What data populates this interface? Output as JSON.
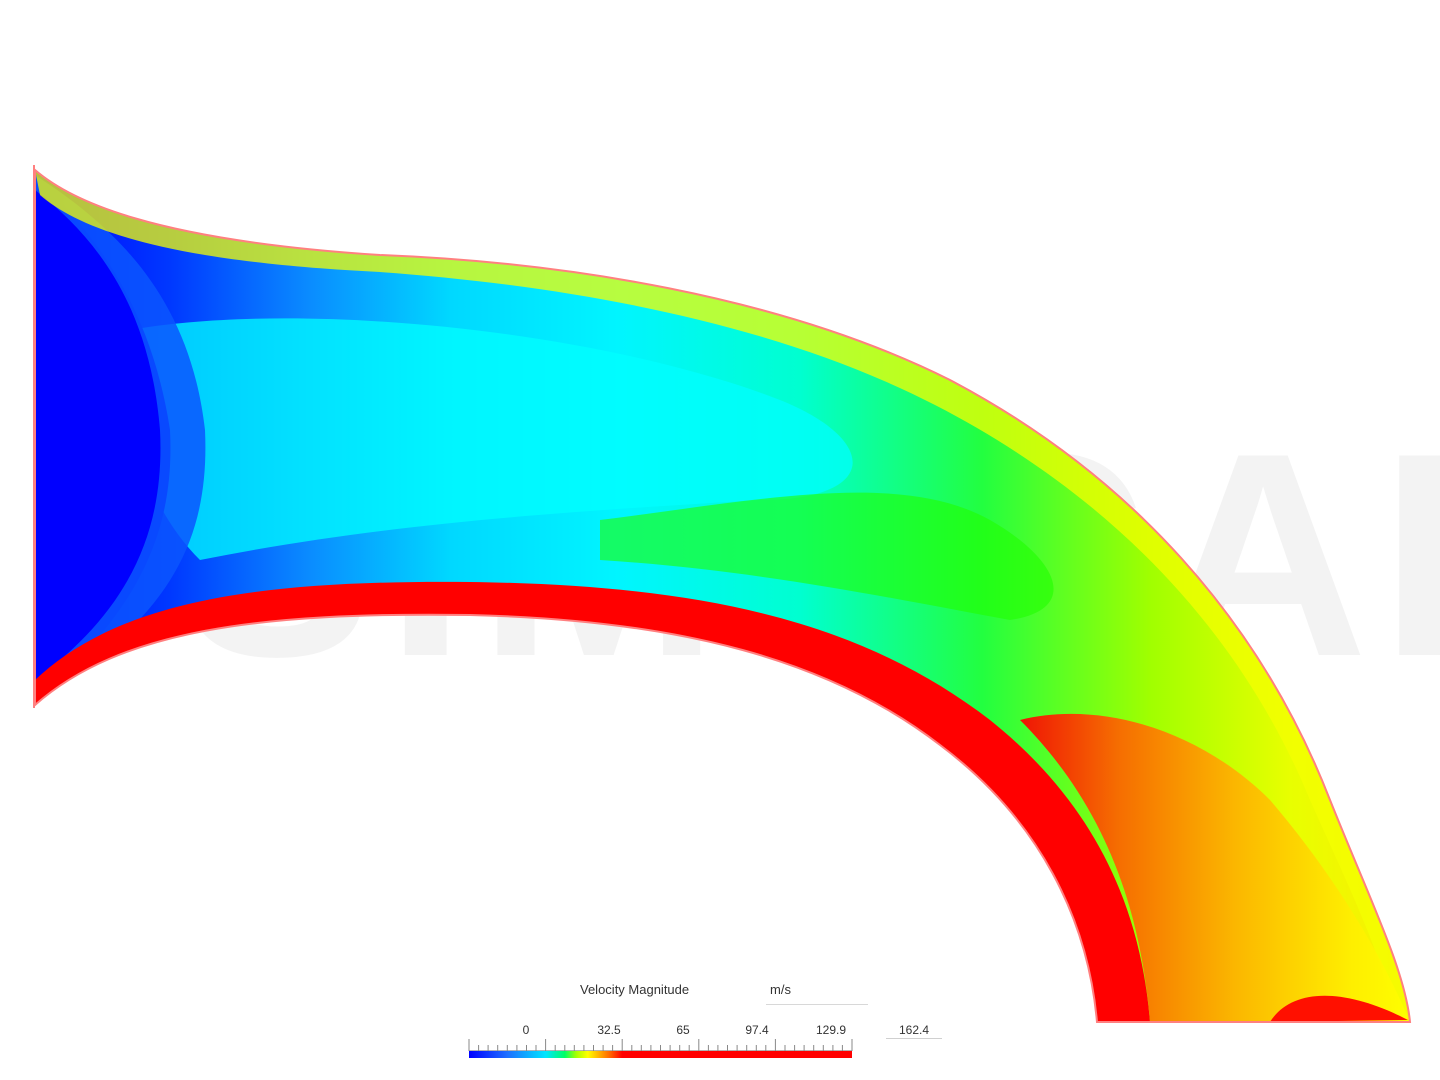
{
  "legend": {
    "title": "Velocity Magnitude",
    "unit": "m/s",
    "tick_labels": [
      "0",
      "32.5",
      "65",
      "97.4",
      "129.9",
      "162.4"
    ],
    "colormap": [
      "#0000ff",
      "#1e6fff",
      "#00e5ff",
      "#00ff66",
      "#a6ff00",
      "#ffff00",
      "#ffb000",
      "#ff6000",
      "#ff0000"
    ]
  },
  "field_colors": {
    "core_slow": "#0000ff",
    "cyan": "#00ffff",
    "green": "#22ff00",
    "yellow": "#ffff00",
    "orange": "#ff9000",
    "red": "#ff0000",
    "wall_outline": "#ff8080"
  },
  "watermark": {
    "text": "SIMSCALE"
  }
}
